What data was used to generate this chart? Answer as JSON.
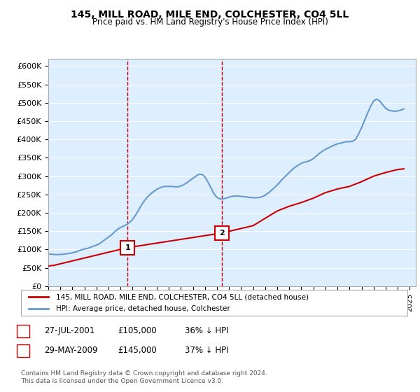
{
  "title": "145, MILL ROAD, MILE END, COLCHESTER, CO4 5LL",
  "subtitle": "Price paid vs. HM Land Registry's House Price Index (HPI)",
  "ylabel_ticks": [
    "£0",
    "£50K",
    "£100K",
    "£150K",
    "£200K",
    "£250K",
    "£300K",
    "£350K",
    "£400K",
    "£450K",
    "£500K",
    "£550K",
    "£600K"
  ],
  "ytick_values": [
    0,
    50000,
    100000,
    150000,
    200000,
    250000,
    300000,
    350000,
    400000,
    450000,
    500000,
    550000,
    600000
  ],
  "xlim": [
    1995.0,
    2025.5
  ],
  "ylim": [
    0,
    620000
  ],
  "bg_color": "#ddeeff",
  "plot_bg_color": "#ddeeff",
  "red_line_color": "#cc0000",
  "blue_line_color": "#6699cc",
  "marker1_x": 2001.57,
  "marker1_y": 105000,
  "marker1_label": "1",
  "marker2_x": 2009.41,
  "marker2_y": 145000,
  "marker2_label": "2",
  "legend_line1": "145, MILL ROAD, MILE END, COLCHESTER, CO4 5LL (detached house)",
  "legend_line2": "HPI: Average price, detached house, Colchester",
  "annotation1": "1    27-JUL-2001    £105,000    36% ↓ HPI",
  "annotation2": "2    29-MAY-2009    £145,000    37% ↓ HPI",
  "footer": "Contains HM Land Registry data © Crown copyright and database right 2024.\nThis data is licensed under the Open Government Licence v3.0.",
  "hpi_years": [
    1995.0,
    1995.25,
    1995.5,
    1995.75,
    1996.0,
    1996.25,
    1996.5,
    1996.75,
    1997.0,
    1997.25,
    1997.5,
    1997.75,
    1998.0,
    1998.25,
    1998.5,
    1998.75,
    1999.0,
    1999.25,
    1999.5,
    1999.75,
    2000.0,
    2000.25,
    2000.5,
    2000.75,
    2001.0,
    2001.25,
    2001.5,
    2001.75,
    2002.0,
    2002.25,
    2002.5,
    2002.75,
    2003.0,
    2003.25,
    2003.5,
    2003.75,
    2004.0,
    2004.25,
    2004.5,
    2004.75,
    2005.0,
    2005.25,
    2005.5,
    2005.75,
    2006.0,
    2006.25,
    2006.5,
    2006.75,
    2007.0,
    2007.25,
    2007.5,
    2007.75,
    2008.0,
    2008.25,
    2008.5,
    2008.75,
    2009.0,
    2009.25,
    2009.5,
    2009.75,
    2010.0,
    2010.25,
    2010.5,
    2010.75,
    2011.0,
    2011.25,
    2011.5,
    2011.75,
    2012.0,
    2012.25,
    2012.5,
    2012.75,
    2013.0,
    2013.25,
    2013.5,
    2013.75,
    2014.0,
    2014.25,
    2014.5,
    2014.75,
    2015.0,
    2015.25,
    2015.5,
    2015.75,
    2016.0,
    2016.25,
    2016.5,
    2016.75,
    2017.0,
    2017.25,
    2017.5,
    2017.75,
    2018.0,
    2018.25,
    2018.5,
    2018.75,
    2019.0,
    2019.25,
    2019.5,
    2019.75,
    2020.0,
    2020.25,
    2020.5,
    2020.75,
    2021.0,
    2021.25,
    2021.5,
    2021.75,
    2022.0,
    2022.25,
    2022.5,
    2022.75,
    2023.0,
    2023.25,
    2023.5,
    2023.75,
    2024.0,
    2024.25,
    2024.5
  ],
  "hpi_values": [
    88000,
    87000,
    86500,
    86000,
    86500,
    87000,
    88000,
    89500,
    91000,
    93000,
    96000,
    99000,
    101000,
    103000,
    106000,
    109000,
    112000,
    116000,
    122000,
    128000,
    134000,
    140000,
    148000,
    155000,
    160000,
    164000,
    168000,
    174000,
    182000,
    194000,
    208000,
    222000,
    234000,
    244000,
    252000,
    258000,
    264000,
    268000,
    271000,
    272000,
    272000,
    272000,
    271000,
    271000,
    273000,
    277000,
    282000,
    288000,
    294000,
    300000,
    305000,
    305000,
    298000,
    284000,
    268000,
    252000,
    242000,
    238000,
    238000,
    240000,
    243000,
    245000,
    246000,
    246000,
    245000,
    244000,
    243000,
    242000,
    241000,
    241000,
    242000,
    244000,
    248000,
    254000,
    261000,
    268000,
    276000,
    285000,
    294000,
    302000,
    310000,
    318000,
    325000,
    330000,
    335000,
    338000,
    340000,
    343000,
    348000,
    355000,
    362000,
    368000,
    373000,
    377000,
    381000,
    385000,
    388000,
    390000,
    392000,
    394000,
    394000,
    395000,
    400000,
    415000,
    432000,
    452000,
    472000,
    490000,
    505000,
    510000,
    505000,
    495000,
    485000,
    480000,
    478000,
    477000,
    478000,
    480000,
    483000
  ],
  "price_years": [
    1995.0,
    1995.5,
    2001.57,
    2009.41,
    2012.0,
    2013.0,
    2014.0,
    2015.0,
    2016.0,
    2017.0,
    2018.0,
    2019.0,
    2020.0,
    2021.0,
    2022.0,
    2023.0,
    2024.0,
    2024.5
  ],
  "price_values": [
    55000,
    57000,
    105000,
    145000,
    165000,
    185000,
    205000,
    218000,
    228000,
    240000,
    255000,
    265000,
    272000,
    285000,
    300000,
    310000,
    318000,
    320000
  ]
}
